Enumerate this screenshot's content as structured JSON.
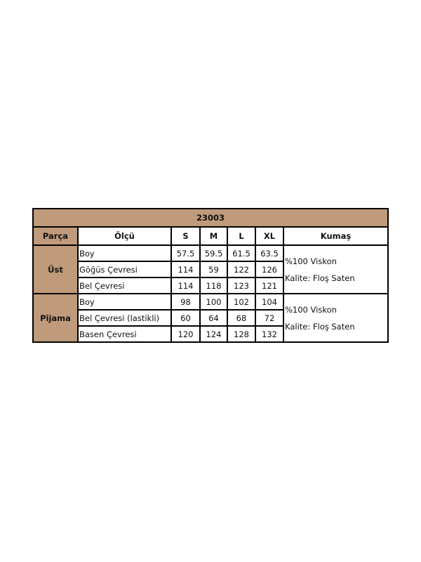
{
  "table": {
    "title": "23003",
    "headers": {
      "part": "Parça",
      "measure": "Ölçü",
      "sizes": [
        "S",
        "M",
        "L",
        "XL"
      ],
      "fabric": "Kumaş"
    },
    "groups": [
      {
        "part": "Üst",
        "rows": [
          {
            "measure": "Boy",
            "values": [
              "57.5",
              "59.5",
              "61.5",
              "63.5"
            ]
          },
          {
            "measure": "Göğüs Çevresi",
            "values": [
              "114",
              "59",
              "122",
              "126"
            ]
          },
          {
            "measure": "Bel Çevresi",
            "values": [
              "114",
              "118",
              "123",
              "121"
            ]
          }
        ],
        "fabric": [
          "%100 Viskon",
          "Kalite: Floş Saten"
        ]
      },
      {
        "part": "Pijama",
        "rows": [
          {
            "measure": "Boy",
            "values": [
              "98",
              "100",
              "102",
              "104"
            ]
          },
          {
            "measure": "Bel Çevresi (lastikli)",
            "values": [
              "60",
              "64",
              "68",
              "72"
            ]
          },
          {
            "measure": "Basen Çevresi",
            "values": [
              "120",
              "124",
              "128",
              "132"
            ]
          }
        ],
        "fabric": [
          "%100 Viskon",
          "Kalite: Floş Saten"
        ]
      }
    ],
    "colors": {
      "header_fill": "#bf9b7b",
      "border": "#000000"
    }
  }
}
